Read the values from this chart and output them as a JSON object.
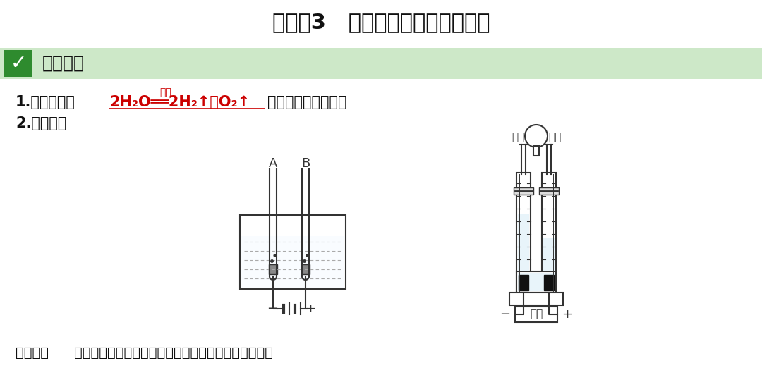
{
  "title": "命题点3   水的组成（电解水实验）",
  "title_fontsize": 22,
  "bg_color": "#ffffff",
  "header_bg": "#cde8c8",
  "header_text": "知识梳理",
  "header_fontsize": 18,
  "check_color": "#2e8b2e",
  "text1_prefix": "1.反应原理：",
  "text1_equation": "2H₂O══2H₂↑＋O₂↑",
  "text1_above": "通电",
  "text1_suffix": "（写化学方程式）。",
  "text2": "2.实验装置",
  "note_bold": "【注意】",
  "note_text": "水中可加入少量硫酸钠或氢氧化钠以增强水的导电性。",
  "note_fontsize": 14,
  "body_fontsize": 15,
  "label_a": "A",
  "label_b": "B",
  "label_huosai1": "活塞",
  "label_huosai2": "活塞",
  "label_dianyuan": "电源"
}
